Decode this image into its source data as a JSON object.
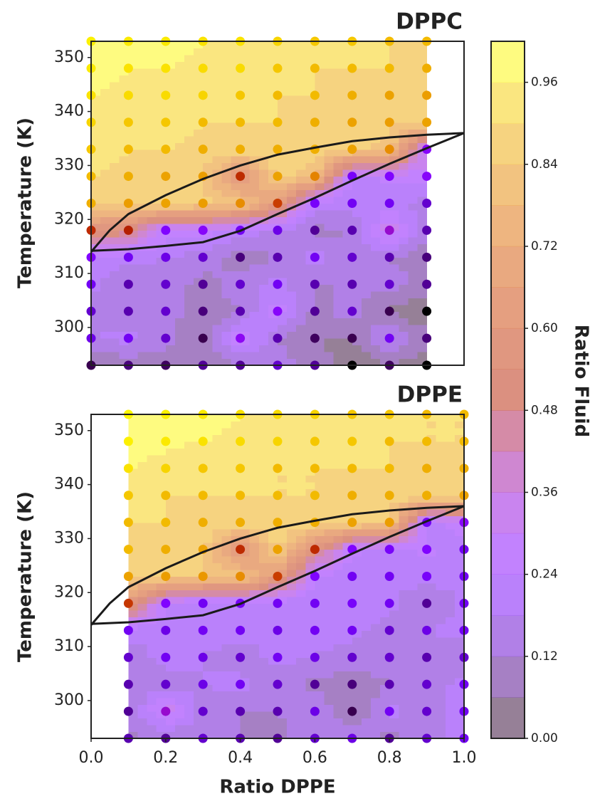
{
  "chart_data": [
    {
      "type": "contour",
      "title": "DPPC",
      "ylabel": "Temperature (K)",
      "x": [
        0,
        0.1,
        0.2,
        0.3,
        0.4,
        0.5,
        0.6,
        0.7,
        0.8,
        0.9
      ],
      "y": [
        293,
        298,
        303,
        308,
        313,
        318,
        323,
        328,
        333,
        338,
        343,
        348,
        353
      ],
      "z": [
        [
          0.05,
          0.08,
          0.06,
          0.1,
          0.1,
          0.15,
          0.1,
          0.0,
          0.06,
          0.0
        ],
        [
          0.18,
          0.2,
          0.15,
          0.05,
          0.3,
          0.12,
          0.06,
          0.05,
          0.2,
          0.08
        ],
        [
          0.15,
          0.12,
          0.15,
          0.08,
          0.12,
          0.28,
          0.1,
          0.15,
          0.05,
          0.0
        ],
        [
          0.2,
          0.12,
          0.15,
          0.1,
          0.15,
          0.2,
          0.12,
          0.12,
          0.15,
          0.1
        ],
        [
          0.25,
          0.2,
          0.18,
          0.15,
          0.08,
          0.12,
          0.2,
          0.15,
          0.12,
          0.08
        ],
        [
          0.55,
          0.5,
          0.25,
          0.28,
          0.2,
          0.18,
          0.1,
          0.12,
          0.35,
          0.12
        ],
        [
          0.88,
          0.85,
          0.86,
          0.85,
          0.82,
          0.62,
          0.22,
          0.2,
          0.2,
          0.15
        ],
        [
          0.9,
          0.88,
          0.86,
          0.85,
          0.55,
          0.86,
          0.8,
          0.22,
          0.25,
          0.28
        ],
        [
          0.92,
          0.9,
          0.9,
          0.88,
          0.88,
          0.88,
          0.88,
          0.86,
          0.82,
          0.28
        ],
        [
          0.94,
          0.92,
          0.92,
          0.9,
          0.9,
          0.9,
          0.88,
          0.86,
          0.85,
          0.86
        ],
        [
          0.96,
          0.95,
          0.95,
          0.94,
          0.92,
          0.9,
          0.9,
          0.88,
          0.86,
          0.85
        ],
        [
          0.97,
          0.96,
          0.96,
          0.95,
          0.95,
          0.92,
          0.9,
          0.9,
          0.9,
          0.88
        ],
        [
          0.98,
          0.97,
          0.97,
          0.96,
          0.96,
          0.94,
          0.92,
          0.92,
          0.9,
          0.9
        ]
      ],
      "xlim": [
        0,
        1
      ],
      "ylim": [
        293,
        353
      ],
      "yticks": [
        300,
        310,
        320,
        330,
        340,
        350
      ],
      "lines": [
        {
          "color": "#1a1a1a",
          "x": [
            0,
            0.05,
            0.1,
            0.2,
            0.3,
            0.4,
            0.5,
            0.6,
            0.7,
            0.8,
            0.9,
            1.0
          ],
          "y": [
            314,
            318,
            321,
            324.5,
            327.5,
            330,
            332,
            333.3,
            334.5,
            335.2,
            335.7,
            336
          ]
        },
        {
          "color": "#1a1a1a",
          "x": [
            0,
            0.1,
            0.2,
            0.3,
            0.4,
            0.5,
            0.6,
            0.7,
            0.8,
            0.9,
            1.0
          ],
          "y": [
            314.2,
            314.5,
            315.1,
            315.8,
            317.9,
            321,
            324,
            327.2,
            330.3,
            333.2,
            336
          ]
        }
      ]
    },
    {
      "type": "contour",
      "title": "DPPE",
      "ylabel": "Temperature (K)",
      "xlabel": "Ratio DPPE",
      "x": [
        0.1,
        0.2,
        0.3,
        0.4,
        0.5,
        0.6,
        0.7,
        0.8,
        0.9,
        1.0
      ],
      "y": [
        293,
        298,
        303,
        308,
        313,
        318,
        323,
        328,
        333,
        338,
        343,
        348,
        353
      ],
      "z": [
        [
          0.12,
          0.1,
          0.15,
          0.12,
          0.1,
          0.15,
          0.18,
          0.1,
          0.15,
          0.2
        ],
        [
          0.1,
          0.35,
          0.15,
          0.12,
          0.12,
          0.18,
          0.05,
          0.2,
          0.15,
          0.2
        ],
        [
          0.12,
          0.15,
          0.18,
          0.2,
          0.15,
          0.1,
          0.08,
          0.12,
          0.15,
          0.2
        ],
        [
          0.15,
          0.2,
          0.18,
          0.15,
          0.2,
          0.18,
          0.15,
          0.15,
          0.12,
          0.15
        ],
        [
          0.2,
          0.18,
          0.2,
          0.2,
          0.18,
          0.2,
          0.2,
          0.15,
          0.18,
          0.2
        ],
        [
          0.6,
          0.25,
          0.2,
          0.2,
          0.2,
          0.2,
          0.22,
          0.2,
          0.1,
          0.2
        ],
        [
          0.86,
          0.85,
          0.84,
          0.82,
          0.62,
          0.25,
          0.2,
          0.2,
          0.22,
          0.2
        ],
        [
          0.9,
          0.88,
          0.86,
          0.55,
          0.86,
          0.55,
          0.25,
          0.22,
          0.25,
          0.2
        ],
        [
          0.9,
          0.9,
          0.88,
          0.88,
          0.88,
          0.88,
          0.86,
          0.85,
          0.2,
          0.28
        ],
        [
          0.92,
          0.9,
          0.9,
          0.9,
          0.9,
          0.9,
          0.88,
          0.88,
          0.88,
          0.86
        ],
        [
          0.96,
          0.94,
          0.92,
          0.92,
          0.9,
          0.9,
          0.9,
          0.9,
          0.88,
          0.88
        ],
        [
          0.98,
          0.97,
          0.96,
          0.95,
          0.94,
          0.92,
          0.92,
          0.9,
          0.9,
          0.9
        ],
        [
          0.99,
          0.98,
          0.97,
          0.96,
          0.95,
          0.94,
          0.92,
          0.92,
          0.9,
          0.9
        ]
      ],
      "xlim": [
        0,
        1
      ],
      "ylim": [
        293,
        353
      ],
      "yticks": [
        300,
        310,
        320,
        330,
        340,
        350
      ],
      "xticks": [
        {
          "value": 0,
          "label": "0.0"
        },
        0.2,
        0.4,
        0.6,
        0.8,
        {
          "value": 1,
          "label": "1.0"
        }
      ],
      "lines": [
        {
          "color": "#1a1a1a",
          "x": [
            0,
            0.05,
            0.1,
            0.2,
            0.3,
            0.4,
            0.5,
            0.6,
            0.7,
            0.8,
            0.9,
            1.0
          ],
          "y": [
            314,
            318,
            321,
            324.5,
            327.5,
            330,
            332,
            333.3,
            334.5,
            335.2,
            335.7,
            336
          ]
        },
        {
          "color": "#1a1a1a",
          "x": [
            0,
            0.1,
            0.2,
            0.3,
            0.4,
            0.5,
            0.6,
            0.7,
            0.8,
            0.9,
            1.0
          ],
          "y": [
            314.2,
            314.5,
            315.1,
            315.8,
            317.9,
            321,
            324,
            327.2,
            330.3,
            333.2,
            336
          ]
        }
      ]
    }
  ],
  "colorbar": {
    "label": "Ratio Fluid",
    "colormap": "gnuplot",
    "alpha": 0.5,
    "levels": [
      0,
      0.06,
      0.12,
      0.18,
      0.24,
      0.3,
      0.36,
      0.42,
      0.48,
      0.54,
      0.6,
      0.66,
      0.72,
      0.78,
      0.84,
      0.9,
      0.96,
      1.02
    ],
    "ticks": [
      {
        "value": 0,
        "label": "0.00"
      },
      0.12,
      0.24,
      0.36,
      0.48,
      {
        "value": 0.6,
        "label": "0.60"
      },
      0.72,
      0.84,
      0.96
    ]
  }
}
